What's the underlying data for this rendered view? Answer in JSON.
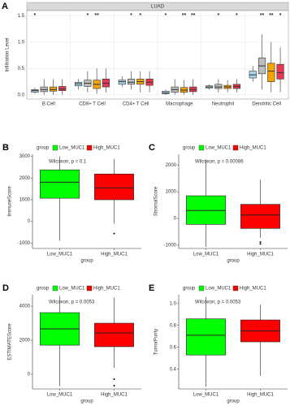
{
  "chart_data": [
    {
      "type": "box",
      "label": "A",
      "strip": "LUAD",
      "y_label": "Infiltration Level",
      "categories": [
        "B Cell",
        "CD8+ T Cell",
        "CD4+ T Cell",
        "Macrophage",
        "Neutrophil",
        "Dendritic Cell"
      ],
      "series": [
        {
          "color": "#a9d3e8",
          "boxes": [
            {
              "low": 0.02,
              "q1": 0.05,
              "median": 0.08,
              "q3": 0.1,
              "high": 0.14
            },
            {
              "low": 0.1,
              "q1": 0.17,
              "median": 0.21,
              "q3": 0.24,
              "high": 0.3
            },
            {
              "low": 0.15,
              "q1": 0.2,
              "median": 0.25,
              "q3": 0.28,
              "high": 0.35
            },
            {
              "low": 0.0,
              "q1": 0.02,
              "median": 0.04,
              "q3": 0.07,
              "high": 0.1
            },
            {
              "low": 0.1,
              "q1": 0.13,
              "median": 0.15,
              "q3": 0.17,
              "high": 0.2
            },
            {
              "low": 0.25,
              "q1": 0.32,
              "median": 0.38,
              "q3": 0.45,
              "high": 0.55
            }
          ]
        },
        {
          "color": "#bdbdbd",
          "boxes": [
            {
              "low": 0,
              "q1": 0.06,
              "median": 0.1,
              "q3": 0.15,
              "high": 0.3
            },
            {
              "low": 0.05,
              "q1": 0.16,
              "median": 0.22,
              "q3": 0.28,
              "high": 0.45
            },
            {
              "low": 0.1,
              "q1": 0.2,
              "median": 0.24,
              "q3": 0.3,
              "high": 0.45
            },
            {
              "low": 0,
              "q1": 0.05,
              "median": 0.1,
              "q3": 0.15,
              "high": 0.3
            },
            {
              "low": 0.05,
              "q1": 0.12,
              "median": 0.15,
              "q3": 0.2,
              "high": 0.3
            },
            {
              "low": 0.1,
              "q1": 0.4,
              "median": 0.55,
              "q3": 0.7,
              "high": 1.15
            }
          ]
        },
        {
          "color": "#f4a300",
          "boxes": [
            {
              "low": 0,
              "q1": 0.07,
              "median": 0.1,
              "q3": 0.15,
              "high": 0.3
            },
            {
              "low": 0.02,
              "q1": 0.12,
              "median": 0.2,
              "q3": 0.28,
              "high": 0.5
            },
            {
              "low": 0.05,
              "q1": 0.2,
              "median": 0.25,
              "q3": 0.3,
              "high": 0.45
            },
            {
              "low": 0,
              "q1": 0.05,
              "median": 0.09,
              "q3": 0.14,
              "high": 0.28
            },
            {
              "low": 0.05,
              "q1": 0.12,
              "median": 0.15,
              "q3": 0.18,
              "high": 0.28
            },
            {
              "low": 0.05,
              "q1": 0.25,
              "median": 0.45,
              "q3": 0.6,
              "high": 1.0
            }
          ]
        },
        {
          "color": "#e8384f",
          "boxes": [
            {
              "low": 0,
              "q1": 0.08,
              "median": 0.11,
              "q3": 0.16,
              "high": 0.3
            },
            {
              "low": 0.05,
              "q1": 0.15,
              "median": 0.22,
              "q3": 0.3,
              "high": 0.5
            },
            {
              "low": 0.05,
              "q1": 0.18,
              "median": 0.24,
              "q3": 0.3,
              "high": 0.45
            },
            {
              "low": 0,
              "q1": 0.06,
              "median": 0.1,
              "q3": 0.15,
              "high": 0.3
            },
            {
              "low": 0.05,
              "q1": 0.12,
              "median": 0.16,
              "q3": 0.2,
              "high": 0.3
            },
            {
              "low": 0.05,
              "q1": 0.3,
              "median": 0.42,
              "q3": 0.58,
              "high": 0.9
            }
          ]
        }
      ],
      "significance": [
        [
          "*",
          null,
          null,
          null
        ],
        [
          null,
          "*",
          "**",
          null
        ],
        [
          null,
          "*",
          "*",
          null
        ],
        [
          "*",
          null,
          "**",
          "**"
        ],
        [
          null,
          "*",
          null,
          "*"
        ],
        [
          null,
          "**",
          "**",
          "*"
        ]
      ],
      "ylim": [
        -0.08,
        1.6
      ],
      "yticks": [
        {
          "value": 0,
          "label": "0.0"
        },
        0.5,
        {
          "value": 1,
          "label": "1.0"
        },
        1.5
      ],
      "grid": true
    },
    {
      "type": "box",
      "label": "B",
      "legend_title": "group",
      "annotation": "Wilcoxon, p = 0.1",
      "y_label": "ImmuneScore",
      "x_label": "group",
      "categories": [
        "Low_MUC1",
        "High_MUC1"
      ],
      "series": [
        {
          "name": "Low_MUC1",
          "color": "#00ff00",
          "box": {
            "low": -900,
            "q1": 1070,
            "median": 1810,
            "q3": 2380,
            "high": 3000
          }
        },
        {
          "name": "High_MUC1",
          "color": "#ff0000",
          "box": {
            "low": -110,
            "q1": 1000,
            "median": 1550,
            "q3": 2190,
            "high": 2890
          },
          "outliers": [
            -560
          ]
        }
      ],
      "ylim": [
        -1250,
        3100
      ],
      "yticks": [
        -1000,
        0,
        1000,
        2000,
        3000
      ]
    },
    {
      "type": "box",
      "label": "C",
      "legend_title": "group",
      "annotation": "Wilcoxon, p = 0.00086",
      "y_label": "StromalScore",
      "x_label": "group",
      "categories": [
        "Low_MUC1",
        "High_MUC1"
      ],
      "series": [
        {
          "name": "Low_MUC1",
          "color": "#00ff00",
          "box": {
            "low": -1050,
            "q1": -220,
            "median": 300,
            "q3": 850,
            "high": 2200
          }
        },
        {
          "name": "High_MUC1",
          "color": "#ff0000",
          "box": {
            "low": -720,
            "q1": -370,
            "median": 130,
            "q3": 530,
            "high": 1450
          },
          "outliers": [
            -880,
            -950
          ]
        }
      ],
      "ylim": [
        -1120,
        2400
      ],
      "yticks": [
        -1000,
        0,
        1000,
        2000
      ]
    },
    {
      "type": "box",
      "label": "D",
      "legend_title": "group",
      "annotation": "Wilcoxon, p = 0.0053",
      "y_label": "ESTIMATEScore",
      "x_label": "group",
      "categories": [
        "Low_MUC1",
        "High_MUC1"
      ],
      "series": [
        {
          "name": "Low_MUC1",
          "color": "#00ff00",
          "box": {
            "low": -700,
            "q1": 1710,
            "median": 2670,
            "q3": 3620,
            "high": 4600
          }
        },
        {
          "name": "High_MUC1",
          "color": "#ff0000",
          "box": {
            "low": 380,
            "q1": 1620,
            "median": 2430,
            "q3": 3000,
            "high": 4500
          },
          "outliers": [
            -290,
            -670
          ]
        }
      ],
      "ylim": [
        -860,
        4670
      ],
      "yticks": [
        0,
        2000,
        4000
      ]
    },
    {
      "type": "box",
      "label": "E",
      "legend_title": "group",
      "annotation": "Wilcoxon, p = 0.0053",
      "y_label": "TumorPurity",
      "x_label": "group",
      "categories": [
        "Low_MUC1",
        "High_MUC1"
      ],
      "series": [
        {
          "name": "Low_MUC1",
          "color": "#00ff00",
          "box": {
            "low": 0.24,
            "q1": 0.53,
            "median": 0.71,
            "q3": 0.86,
            "high": 1.06
          }
        },
        {
          "name": "High_MUC1",
          "color": "#ff0000",
          "box": {
            "low": 0.34,
            "q1": 0.65,
            "median": 0.75,
            "q3": 0.85,
            "high": 0.99
          }
        }
      ],
      "ylim": [
        0.22,
        1.08
      ],
      "yticks": [
        0.4,
        0.6,
        0.8,
        {
          "value": 1,
          "label": "1.0"
        }
      ]
    }
  ]
}
